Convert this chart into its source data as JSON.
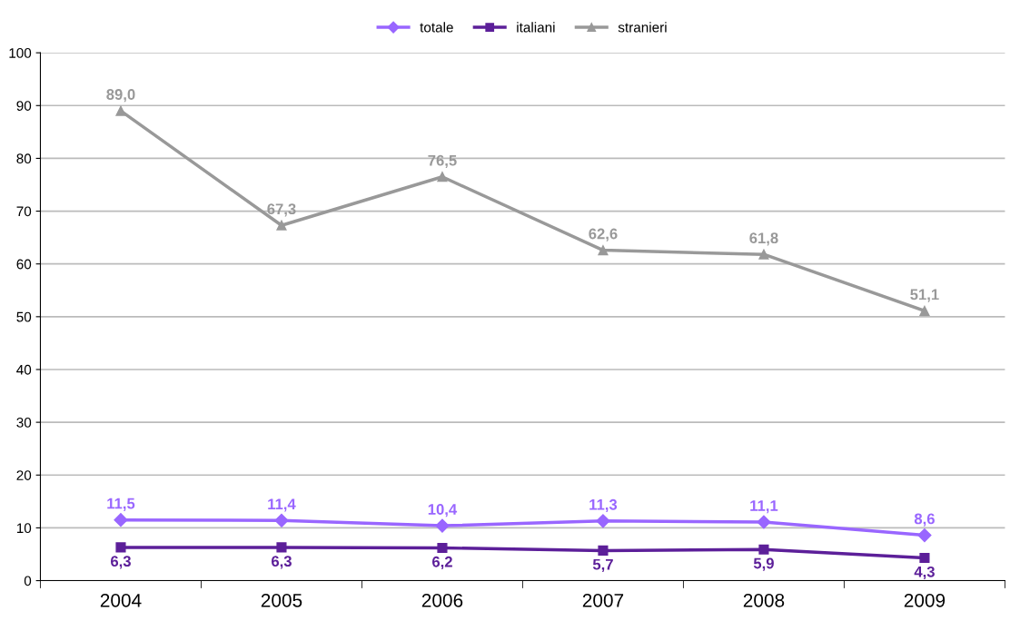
{
  "chart_data": {
    "type": "line",
    "categories": [
      "2004",
      "2005",
      "2006",
      "2007",
      "2008",
      "2009"
    ],
    "series": [
      {
        "name": "totale",
        "color": "#9966ff",
        "marker": "diamond",
        "values": [
          11.5,
          11.4,
          10.4,
          11.3,
          11.1,
          8.6
        ],
        "value_labels": [
          "11,5",
          "11,4",
          "10,4",
          "11,3",
          "11,1",
          "8,6"
        ]
      },
      {
        "name": "italiani",
        "color": "#5c1f99",
        "marker": "square",
        "values": [
          6.3,
          6.3,
          6.2,
          5.7,
          5.9,
          4.3
        ],
        "value_labels": [
          "6,3",
          "6,3",
          "6,2",
          "5,7",
          "5,9",
          "4,3"
        ]
      },
      {
        "name": "stranieri",
        "color": "#999999",
        "marker": "triangle",
        "values": [
          89.0,
          67.3,
          76.5,
          62.6,
          61.8,
          51.1
        ],
        "value_labels": [
          "89,0",
          "67,3",
          "76,5",
          "62,6",
          "61,8",
          "51,1"
        ]
      }
    ],
    "ylim": [
      0,
      100
    ],
    "yticks": [
      0,
      10,
      20,
      30,
      40,
      50,
      60,
      70,
      80,
      90,
      100
    ],
    "grid": "y",
    "legend": "top"
  }
}
